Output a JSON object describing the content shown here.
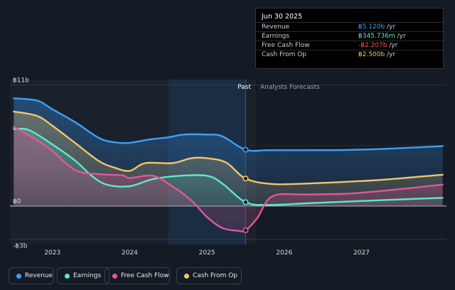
{
  "chart_data": {
    "type": "line",
    "x_ticks": [
      "2023",
      "2024",
      "2025",
      "2026",
      "2027"
    ],
    "y_ticks": [
      {
        "value": 11,
        "label": "฿11b"
      },
      {
        "value": 0,
        "label": "฿0"
      },
      {
        "value": -3,
        "label": "-฿3b"
      }
    ],
    "ylim": [
      -3.5,
      11.5
    ],
    "xlim": [
      2022.45,
      2028.1
    ],
    "past_label": "Past",
    "forecast_label": "Analysts Forecasts",
    "divider_x": 2025.5,
    "highlight_start_x": 2024.5,
    "series": [
      {
        "name": "Revenue",
        "color": "#3aa0ff",
        "points": [
          [
            2022.5,
            9.8
          ],
          [
            2022.8,
            9.6
          ],
          [
            2023.0,
            8.8
          ],
          [
            2023.3,
            7.6
          ],
          [
            2023.6,
            6.2
          ],
          [
            2023.8,
            5.8
          ],
          [
            2024.0,
            5.75
          ],
          [
            2024.25,
            6.05
          ],
          [
            2024.5,
            6.25
          ],
          [
            2024.7,
            6.5
          ],
          [
            2025.0,
            6.5
          ],
          [
            2025.2,
            6.35
          ],
          [
            2025.5,
            5.12
          ],
          [
            2025.8,
            5.08
          ],
          [
            2026.3,
            5.08
          ],
          [
            2026.8,
            5.1
          ],
          [
            2027.3,
            5.2
          ],
          [
            2028.05,
            5.45
          ]
        ]
      },
      {
        "name": "Earnings",
        "color": "#5ee8cf",
        "points": [
          [
            2022.5,
            7.0
          ],
          [
            2022.7,
            6.9
          ],
          [
            2023.0,
            5.6
          ],
          [
            2023.3,
            4.1
          ],
          [
            2023.5,
            2.8
          ],
          [
            2023.7,
            1.95
          ],
          [
            2024.0,
            1.8
          ],
          [
            2024.3,
            2.45
          ],
          [
            2024.65,
            2.75
          ],
          [
            2025.0,
            2.75
          ],
          [
            2025.2,
            2.05
          ],
          [
            2025.5,
            0.346
          ],
          [
            2025.8,
            0.1
          ],
          [
            2026.3,
            0.25
          ],
          [
            2026.8,
            0.4
          ],
          [
            2027.3,
            0.55
          ],
          [
            2028.05,
            0.75
          ]
        ]
      },
      {
        "name": "Free Cash Flow",
        "color": "#e05896",
        "points": [
          [
            2022.5,
            7.2
          ],
          [
            2022.8,
            6.0
          ],
          [
            2023.0,
            5.0
          ],
          [
            2023.3,
            3.25
          ],
          [
            2023.6,
            2.9
          ],
          [
            2023.9,
            2.8
          ],
          [
            2024.0,
            2.55
          ],
          [
            2024.3,
            2.75
          ],
          [
            2024.55,
            1.8
          ],
          [
            2024.8,
            0.5
          ],
          [
            2025.0,
            -1.0
          ],
          [
            2025.2,
            -2.0
          ],
          [
            2025.4,
            -2.25
          ],
          [
            2025.5,
            -2.207
          ],
          [
            2025.65,
            -1.1
          ],
          [
            2025.85,
            0.9
          ],
          [
            2026.3,
            1.05
          ],
          [
            2026.8,
            1.12
          ],
          [
            2027.3,
            1.4
          ],
          [
            2028.05,
            1.95
          ]
        ]
      },
      {
        "name": "Cash From Op",
        "color": "#f3c56a",
        "points": [
          [
            2022.5,
            8.6
          ],
          [
            2022.8,
            8.2
          ],
          [
            2023.0,
            7.3
          ],
          [
            2023.3,
            5.7
          ],
          [
            2023.6,
            4.1
          ],
          [
            2023.8,
            3.5
          ],
          [
            2024.0,
            3.2
          ],
          [
            2024.2,
            3.9
          ],
          [
            2024.55,
            3.9
          ],
          [
            2024.8,
            4.35
          ],
          [
            2025.0,
            4.35
          ],
          [
            2025.25,
            3.95
          ],
          [
            2025.5,
            2.5
          ],
          [
            2025.85,
            2.0
          ],
          [
            2026.3,
            2.05
          ],
          [
            2026.8,
            2.2
          ],
          [
            2027.3,
            2.4
          ],
          [
            2028.05,
            2.85
          ]
        ]
      }
    ]
  },
  "tooltip": {
    "date": "Jun 30 2025",
    "rows": [
      {
        "label": "Revenue",
        "value": "฿5.120b",
        "unit": "/yr",
        "color": "#3aa0ff"
      },
      {
        "label": "Earnings",
        "value": "฿345.736m",
        "unit": "/yr",
        "color": "#5ee8cf"
      },
      {
        "label": "Free Cash Flow",
        "value": "-฿2.207b",
        "unit": "/yr",
        "color": "#ff4d4d"
      },
      {
        "label": "Cash From Op",
        "value": "฿2.500b",
        "unit": "/yr",
        "color": "#f3c56a"
      }
    ]
  },
  "legend": [
    {
      "label": "Revenue",
      "color": "#3aa0ff"
    },
    {
      "label": "Earnings",
      "color": "#5ee8cf"
    },
    {
      "label": "Free Cash Flow",
      "color": "#e05896"
    },
    {
      "label": "Cash From Op",
      "color": "#f3c56a"
    }
  ]
}
